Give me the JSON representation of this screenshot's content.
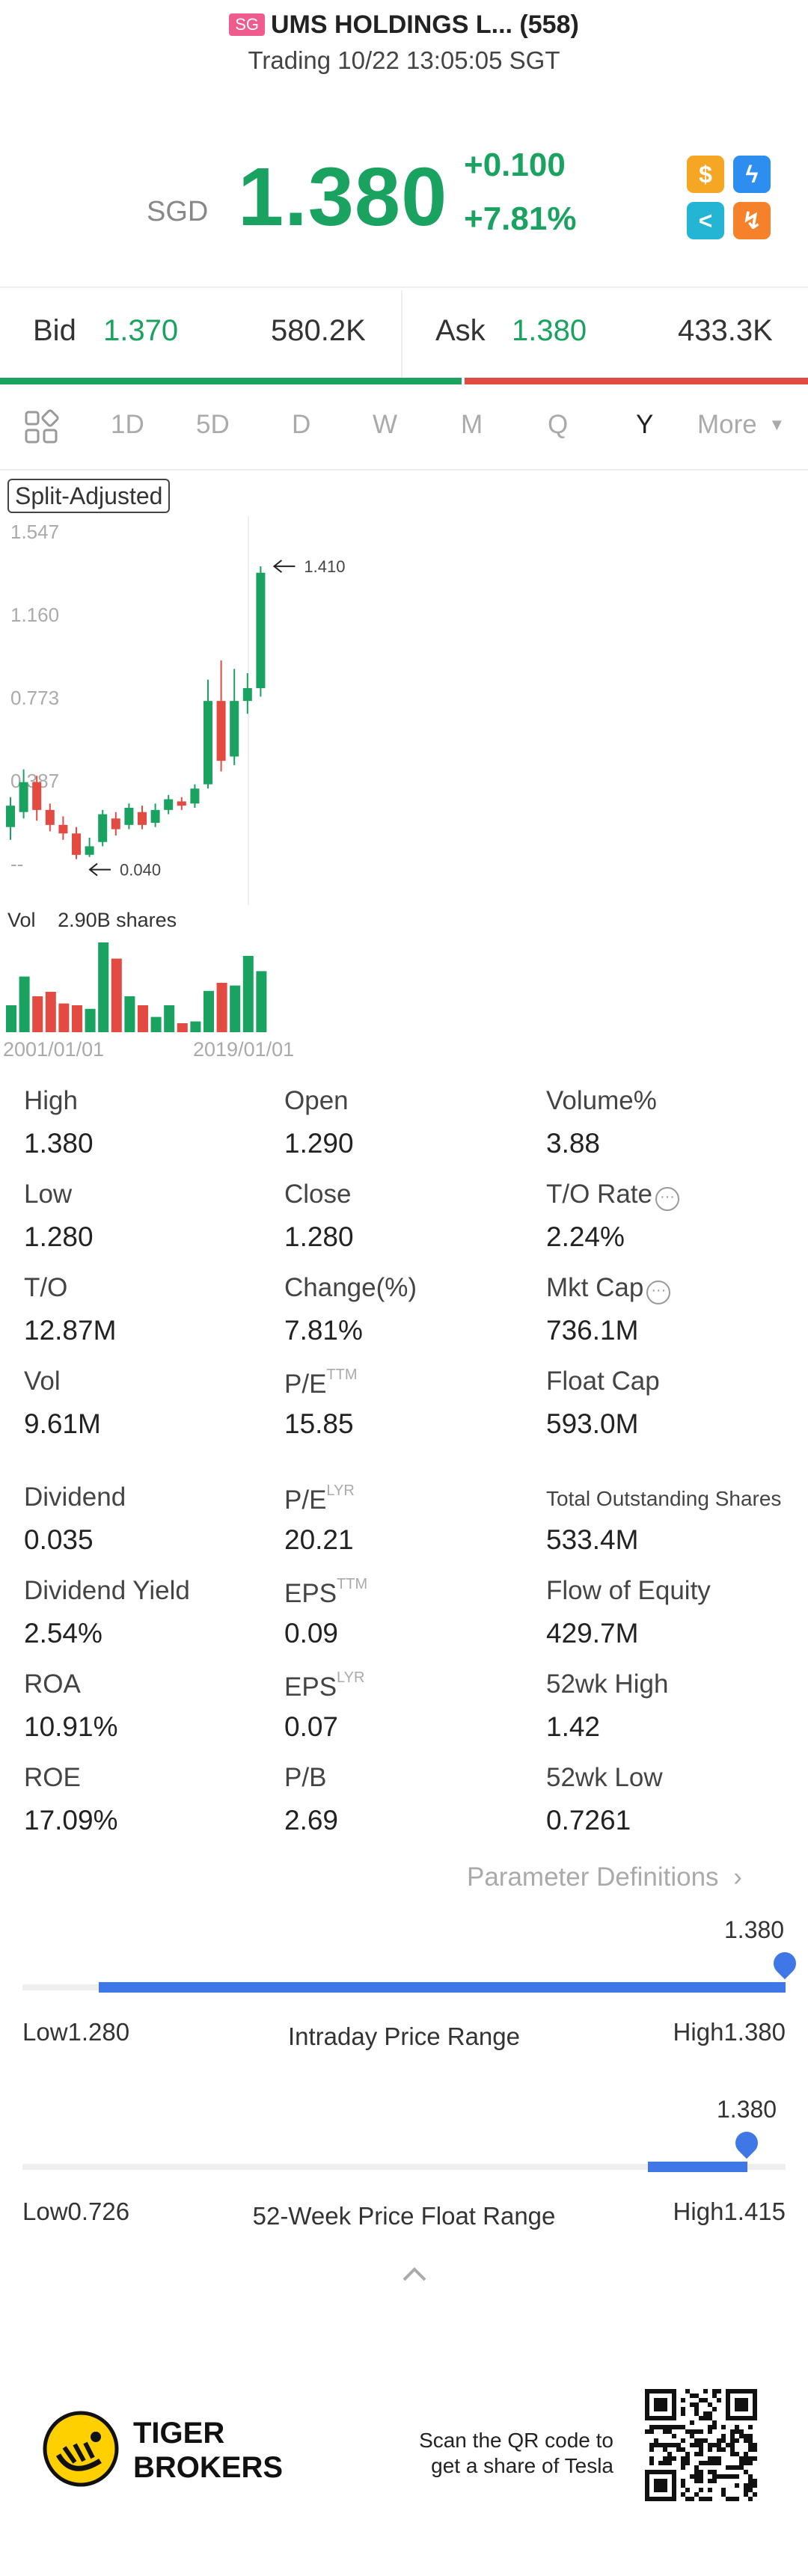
{
  "header": {
    "market_badge": "SG",
    "title": "UMS HOLDINGS L... (558)",
    "subtitle": "Trading 10/22 13:05:05 SGT"
  },
  "quote": {
    "currency": "SGD",
    "price": "1.380",
    "change": "+0.100",
    "change_pct": "+7.81%",
    "icons": [
      {
        "name": "dollar-icon",
        "glyph": "$",
        "color": "#f5a623"
      },
      {
        "name": "flash-icon",
        "glyph": "ϟ",
        "color": "#2e8ef0"
      },
      {
        "name": "share-icon",
        "glyph": "<",
        "color": "#23b5d3"
      },
      {
        "name": "trend-icon",
        "glyph": "↯",
        "color": "#f5822a"
      }
    ]
  },
  "bidask": {
    "bid_label": "Bid",
    "bid_price": "1.370",
    "bid_size": "580.2K",
    "ask_label": "Ask",
    "ask_price": "1.380",
    "ask_size": "433.3K",
    "bid_ratio": 0.573
  },
  "tabs": {
    "items": [
      "1D",
      "5D",
      "D",
      "W",
      "M",
      "Q",
      "Y",
      "More"
    ],
    "active": "Y"
  },
  "chart": {
    "split_label": "Split-Adjusted",
    "high_annot": "1.410",
    "low_annot": "0.040",
    "vol_label": "Vol",
    "vol_value": "2.90B shares",
    "x_start": "2001/01/01",
    "x_end": "2019/01/01"
  },
  "chart_data": {
    "type": "candlestick",
    "y_ticks": [
      "1.547",
      "1.160",
      "0.773",
      "0.387",
      "--"
    ],
    "ylim": [
      0,
      1.547
    ],
    "candles": [
      {
        "o": 0.19,
        "c": 0.29,
        "h": 0.33,
        "l": 0.13
      },
      {
        "o": 0.26,
        "c": 0.4,
        "h": 0.46,
        "l": 0.23
      },
      {
        "o": 0.4,
        "c": 0.27,
        "h": 0.43,
        "l": 0.22
      },
      {
        "o": 0.27,
        "c": 0.2,
        "h": 0.3,
        "l": 0.17
      },
      {
        "o": 0.2,
        "c": 0.16,
        "h": 0.24,
        "l": 0.13
      },
      {
        "o": 0.16,
        "c": 0.06,
        "h": 0.19,
        "l": 0.04
      },
      {
        "o": 0.06,
        "c": 0.1,
        "h": 0.14,
        "l": 0.05
      },
      {
        "o": 0.12,
        "c": 0.25,
        "h": 0.27,
        "l": 0.1
      },
      {
        "o": 0.23,
        "c": 0.18,
        "h": 0.26,
        "l": 0.15
      },
      {
        "o": 0.2,
        "c": 0.28,
        "h": 0.3,
        "l": 0.18
      },
      {
        "o": 0.26,
        "c": 0.2,
        "h": 0.29,
        "l": 0.18
      },
      {
        "o": 0.21,
        "c": 0.27,
        "h": 0.3,
        "l": 0.19
      },
      {
        "o": 0.27,
        "c": 0.32,
        "h": 0.34,
        "l": 0.25
      },
      {
        "o": 0.31,
        "c": 0.29,
        "h": 0.33,
        "l": 0.27
      },
      {
        "o": 0.3,
        "c": 0.37,
        "h": 0.39,
        "l": 0.28
      },
      {
        "o": 0.39,
        "c": 0.78,
        "h": 0.88,
        "l": 0.37
      },
      {
        "o": 0.78,
        "c": 0.5,
        "h": 0.97,
        "l": 0.45
      },
      {
        "o": 0.52,
        "c": 0.78,
        "h": 0.93,
        "l": 0.48
      },
      {
        "o": 0.78,
        "c": 0.84,
        "h": 0.91,
        "l": 0.72
      },
      {
        "o": 0.84,
        "c": 1.38,
        "h": 1.41,
        "l": 0.8
      }
    ],
    "volumes": [
      {
        "v": 0.3,
        "up": true
      },
      {
        "v": 0.62,
        "up": true
      },
      {
        "v": 0.4,
        "up": false
      },
      {
        "v": 0.45,
        "up": false
      },
      {
        "v": 0.32,
        "up": false
      },
      {
        "v": 0.3,
        "up": false
      },
      {
        "v": 0.26,
        "up": true
      },
      {
        "v": 1.0,
        "up": true
      },
      {
        "v": 0.82,
        "up": false
      },
      {
        "v": 0.4,
        "up": true
      },
      {
        "v": 0.3,
        "up": false
      },
      {
        "v": 0.17,
        "up": true
      },
      {
        "v": 0.3,
        "up": true
      },
      {
        "v": 0.1,
        "up": false
      },
      {
        "v": 0.12,
        "up": true
      },
      {
        "v": 0.46,
        "up": true
      },
      {
        "v": 0.55,
        "up": false
      },
      {
        "v": 0.52,
        "up": true
      },
      {
        "v": 0.85,
        "up": true
      },
      {
        "v": 0.68,
        "up": true
      }
    ]
  },
  "stats": [
    {
      "label": "High",
      "value": "1.380"
    },
    {
      "label": "Open",
      "value": "1.290"
    },
    {
      "label": "Volume%",
      "value": "3.88"
    },
    {
      "label": "Low",
      "value": "1.280"
    },
    {
      "label": "Close",
      "value": "1.280"
    },
    {
      "label": "T/O Rate",
      "value": "2.24%",
      "info": true
    },
    {
      "label": "T/O",
      "value": "12.87M"
    },
    {
      "label": "Change(%)",
      "value": "7.81%"
    },
    {
      "label": "Mkt Cap",
      "value": "736.1M",
      "info": true
    },
    {
      "label": "Vol",
      "value": "9.61M"
    },
    {
      "label": "P/E",
      "sup": "TTM",
      "value": "15.85"
    },
    {
      "label": "Float Cap",
      "value": "593.0M"
    },
    {
      "label": "Dividend",
      "value": "0.035"
    },
    {
      "label": "P/E",
      "sup": "LYR",
      "value": "20.21"
    },
    {
      "label": "Total Outstanding Shares",
      "value": "533.4M",
      "small": true
    },
    {
      "label": "Dividend Yield",
      "value": "2.54%"
    },
    {
      "label": "EPS",
      "sup": "TTM",
      "value": "0.09"
    },
    {
      "label": "Flow of Equity",
      "value": "429.7M"
    },
    {
      "label": "ROA",
      "value": "10.91%"
    },
    {
      "label": "EPS",
      "sup": "LYR",
      "value": "0.07"
    },
    {
      "label": "52wk High",
      "value": "1.42"
    },
    {
      "label": "ROE",
      "value": "17.09%"
    },
    {
      "label": "P/B",
      "value": "2.69"
    },
    {
      "label": "52wk Low",
      "value": "0.7261"
    }
  ],
  "param_link": "Parameter Definitions",
  "intraday": {
    "current": "1.380",
    "low": "Low1.280",
    "high": "High1.380",
    "title": "Intraday Price Range",
    "fill_start": 0.1,
    "fill_end": 1.0,
    "marker": 1.0
  },
  "week52": {
    "current": "1.380",
    "low": "Low0.726",
    "high": "High1.415",
    "title": "52-Week Price Float Range",
    "fill_start": 0.82,
    "fill_end": 0.95,
    "marker": 0.95
  },
  "footer": {
    "brand_line1": "TIGER",
    "brand_line2": "BROKERS",
    "qr_text_line1": "Scan the QR code to",
    "qr_text_line2": "get a share of Tesla"
  }
}
